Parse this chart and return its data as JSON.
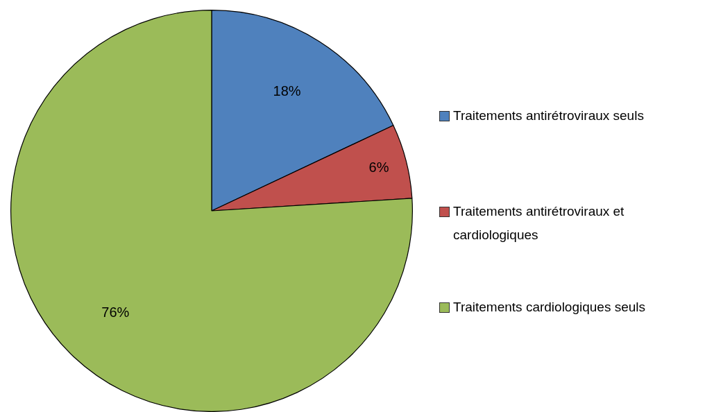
{
  "chart_data": {
    "type": "pie",
    "categories": [
      "Traitements antirétroviraux seuls",
      "Traitements antirétroviraux et cardiologiques",
      "Traitements cardiologiques seuls"
    ],
    "values": [
      18,
      6,
      76
    ],
    "colors": [
      "#4f81bd",
      "#c0504d",
      "#9bbb59"
    ],
    "value_labels": [
      "18%",
      "6%",
      "76%"
    ],
    "legend": "right"
  }
}
